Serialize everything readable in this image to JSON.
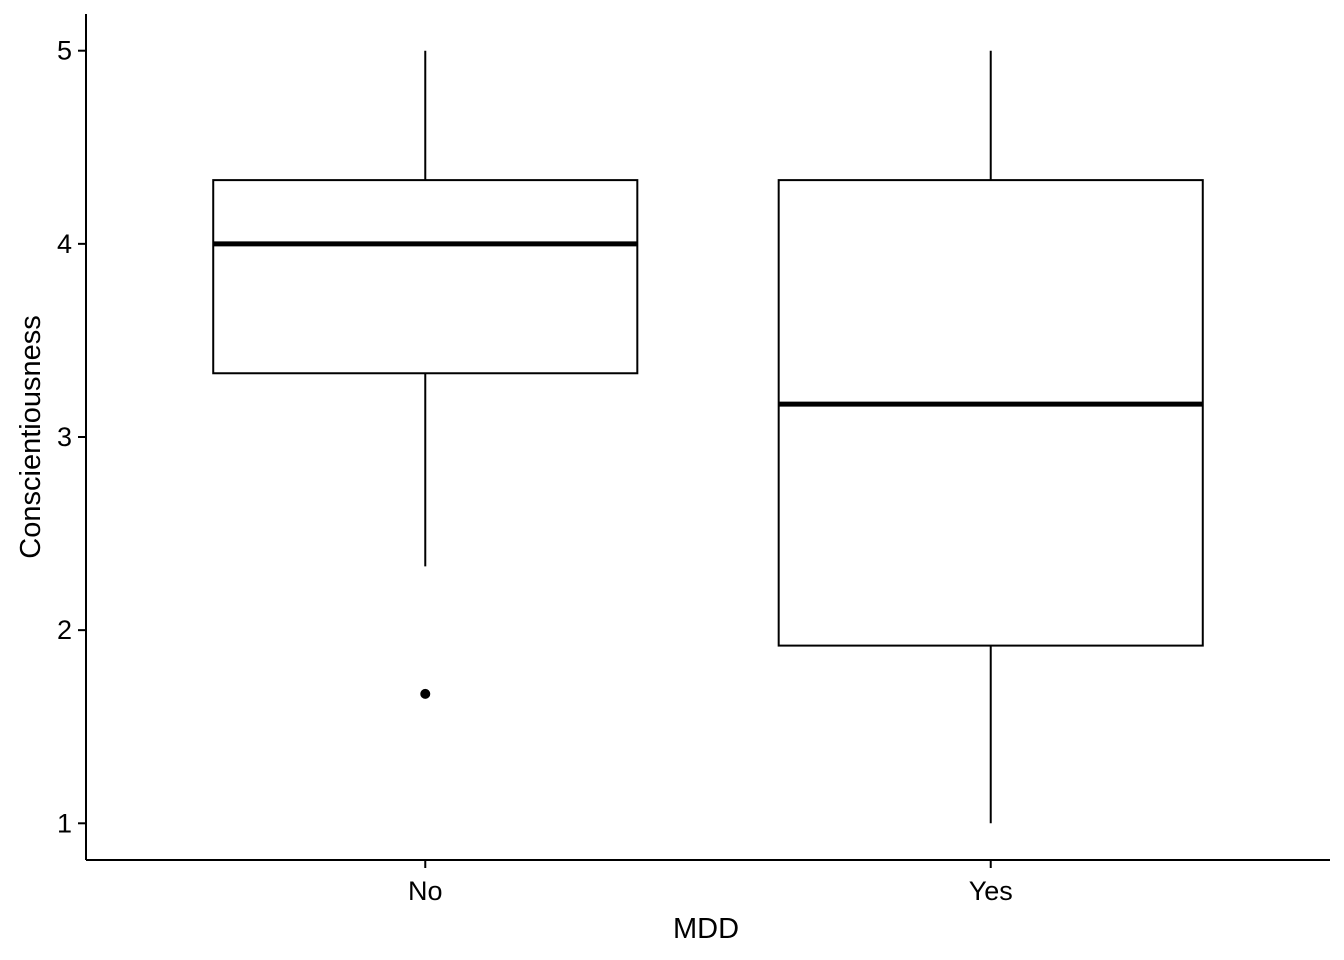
{
  "chart_data": {
    "type": "box",
    "title": "",
    "xlabel": "MDD",
    "ylabel": "Conscientiousness",
    "ylim": [
      0.81,
      5.19
    ],
    "yticks": [
      1,
      2,
      3,
      4,
      5
    ],
    "ytick_labels": [
      "1",
      "2",
      "3",
      "4",
      "5"
    ],
    "categories": [
      "No",
      "Yes"
    ],
    "boxes": [
      {
        "category": "No",
        "whisker_low": 2.33,
        "q1": 3.33,
        "median": 4.0,
        "q3": 4.33,
        "whisker_high": 5.0,
        "outliers": [
          1.67
        ]
      },
      {
        "category": "Yes",
        "whisker_low": 1.0,
        "q1": 1.92,
        "median": 3.17,
        "q3": 4.33,
        "whisker_high": 5.0,
        "outliers": []
      }
    ],
    "grid": false,
    "legend": "none"
  }
}
